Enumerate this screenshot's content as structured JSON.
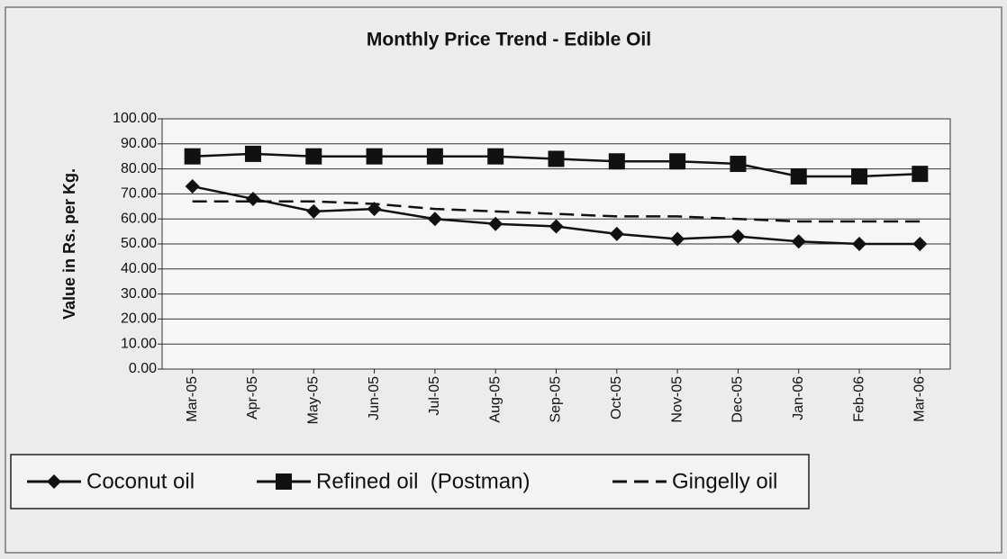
{
  "chart_data": {
    "type": "line",
    "title": "Monthly Price Trend - Edible Oil",
    "y_label": "Value in Rs. per Kg.",
    "categories": [
      "Mar-05",
      "Apr-05",
      "May-05",
      "Jun-05",
      "Jul-05",
      "Aug-05",
      "Sep-05",
      "Oct-05",
      "Nov-05",
      "Dec-05",
      "Jan-06",
      "Feb-06",
      "Mar-06"
    ],
    "series": [
      {
        "name": "Coconut oil",
        "color": "#111111",
        "marker": "diamond",
        "dashed": false,
        "values": [
          73,
          68,
          63,
          64,
          60,
          58,
          57,
          54,
          52,
          53,
          51,
          50,
          50
        ]
      },
      {
        "name": "Refined oil  (Postman)",
        "color": "#111111",
        "marker": "square",
        "dashed": false,
        "values": [
          85,
          86,
          85,
          85,
          85,
          85,
          84,
          83,
          83,
          82,
          77,
          77,
          78
        ]
      },
      {
        "name": "Gingelly oil",
        "color": "#111111",
        "marker": "none",
        "dashed": true,
        "values": [
          67,
          67,
          67,
          66,
          64,
          63,
          62,
          61,
          61,
          60,
          59,
          59,
          59
        ]
      }
    ],
    "ylim": [
      0,
      100
    ],
    "yticks": [
      {
        "value": 0,
        "label": "0.00"
      },
      {
        "value": 10,
        "label": "10.00"
      },
      {
        "value": 20,
        "label": "20.00"
      },
      {
        "value": 30,
        "label": "30.00"
      },
      {
        "value": 40,
        "label": "40.00"
      },
      {
        "value": 50,
        "label": "50.00"
      },
      {
        "value": 60,
        "label": "60.00"
      },
      {
        "value": 70,
        "label": "70.00"
      },
      {
        "value": 80,
        "label": "80.00"
      },
      {
        "value": 90,
        "label": "90.00"
      },
      {
        "value": 100,
        "label": "100.00"
      }
    ],
    "grid": true,
    "legend": "bottom"
  }
}
